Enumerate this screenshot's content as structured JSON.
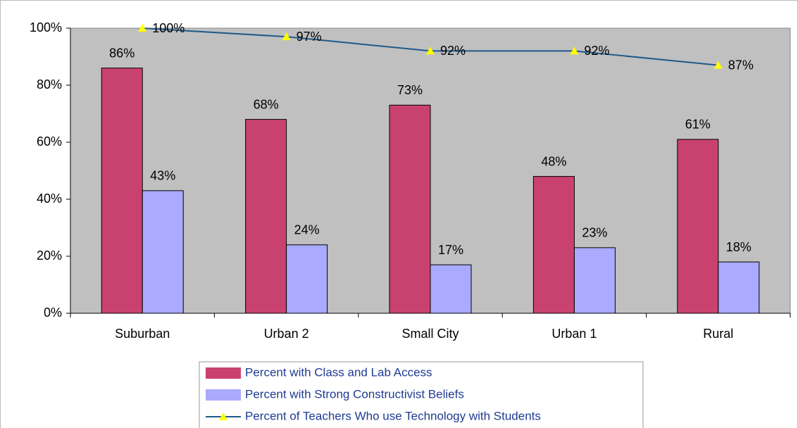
{
  "chart_data": {
    "type": "bar",
    "categories": [
      "Suburban",
      "Urban 2",
      "Small City",
      "Urban 1",
      "Rural"
    ],
    "series": [
      {
        "name": "Percent with Class and Lab Access",
        "color": "#c9426f",
        "values": [
          86,
          68,
          73,
          48,
          61
        ],
        "value_labels": [
          "86%",
          "68%",
          "73%",
          "48%",
          "61%"
        ]
      },
      {
        "name": "Percent with Strong Constructivist Beliefs",
        "color": "#aaaaff",
        "values": [
          43,
          24,
          17,
          23,
          18
        ],
        "value_labels": [
          "43%",
          "24%",
          "17%",
          "23%",
          "18%"
        ]
      },
      {
        "name": "Percent of Teachers Who use Technology with Students",
        "type": "line",
        "color": "#1f5a8a",
        "marker_color": "#ffff00",
        "values": [
          100,
          97,
          92,
          92,
          87
        ],
        "value_labels": [
          "100%",
          "97%",
          "92%",
          "92%",
          "87%"
        ]
      }
    ],
    "ylim": [
      0,
      100
    ],
    "yticks": [
      {
        "value": 0,
        "label": "0%"
      },
      {
        "value": 20,
        "label": "20%"
      },
      {
        "value": 40,
        "label": "40%"
      },
      {
        "value": 60,
        "label": "60%"
      },
      {
        "value": 80,
        "label": "80%"
      },
      {
        "value": 100,
        "label": "100%"
      }
    ],
    "plot_background": "#c0c0c0"
  }
}
